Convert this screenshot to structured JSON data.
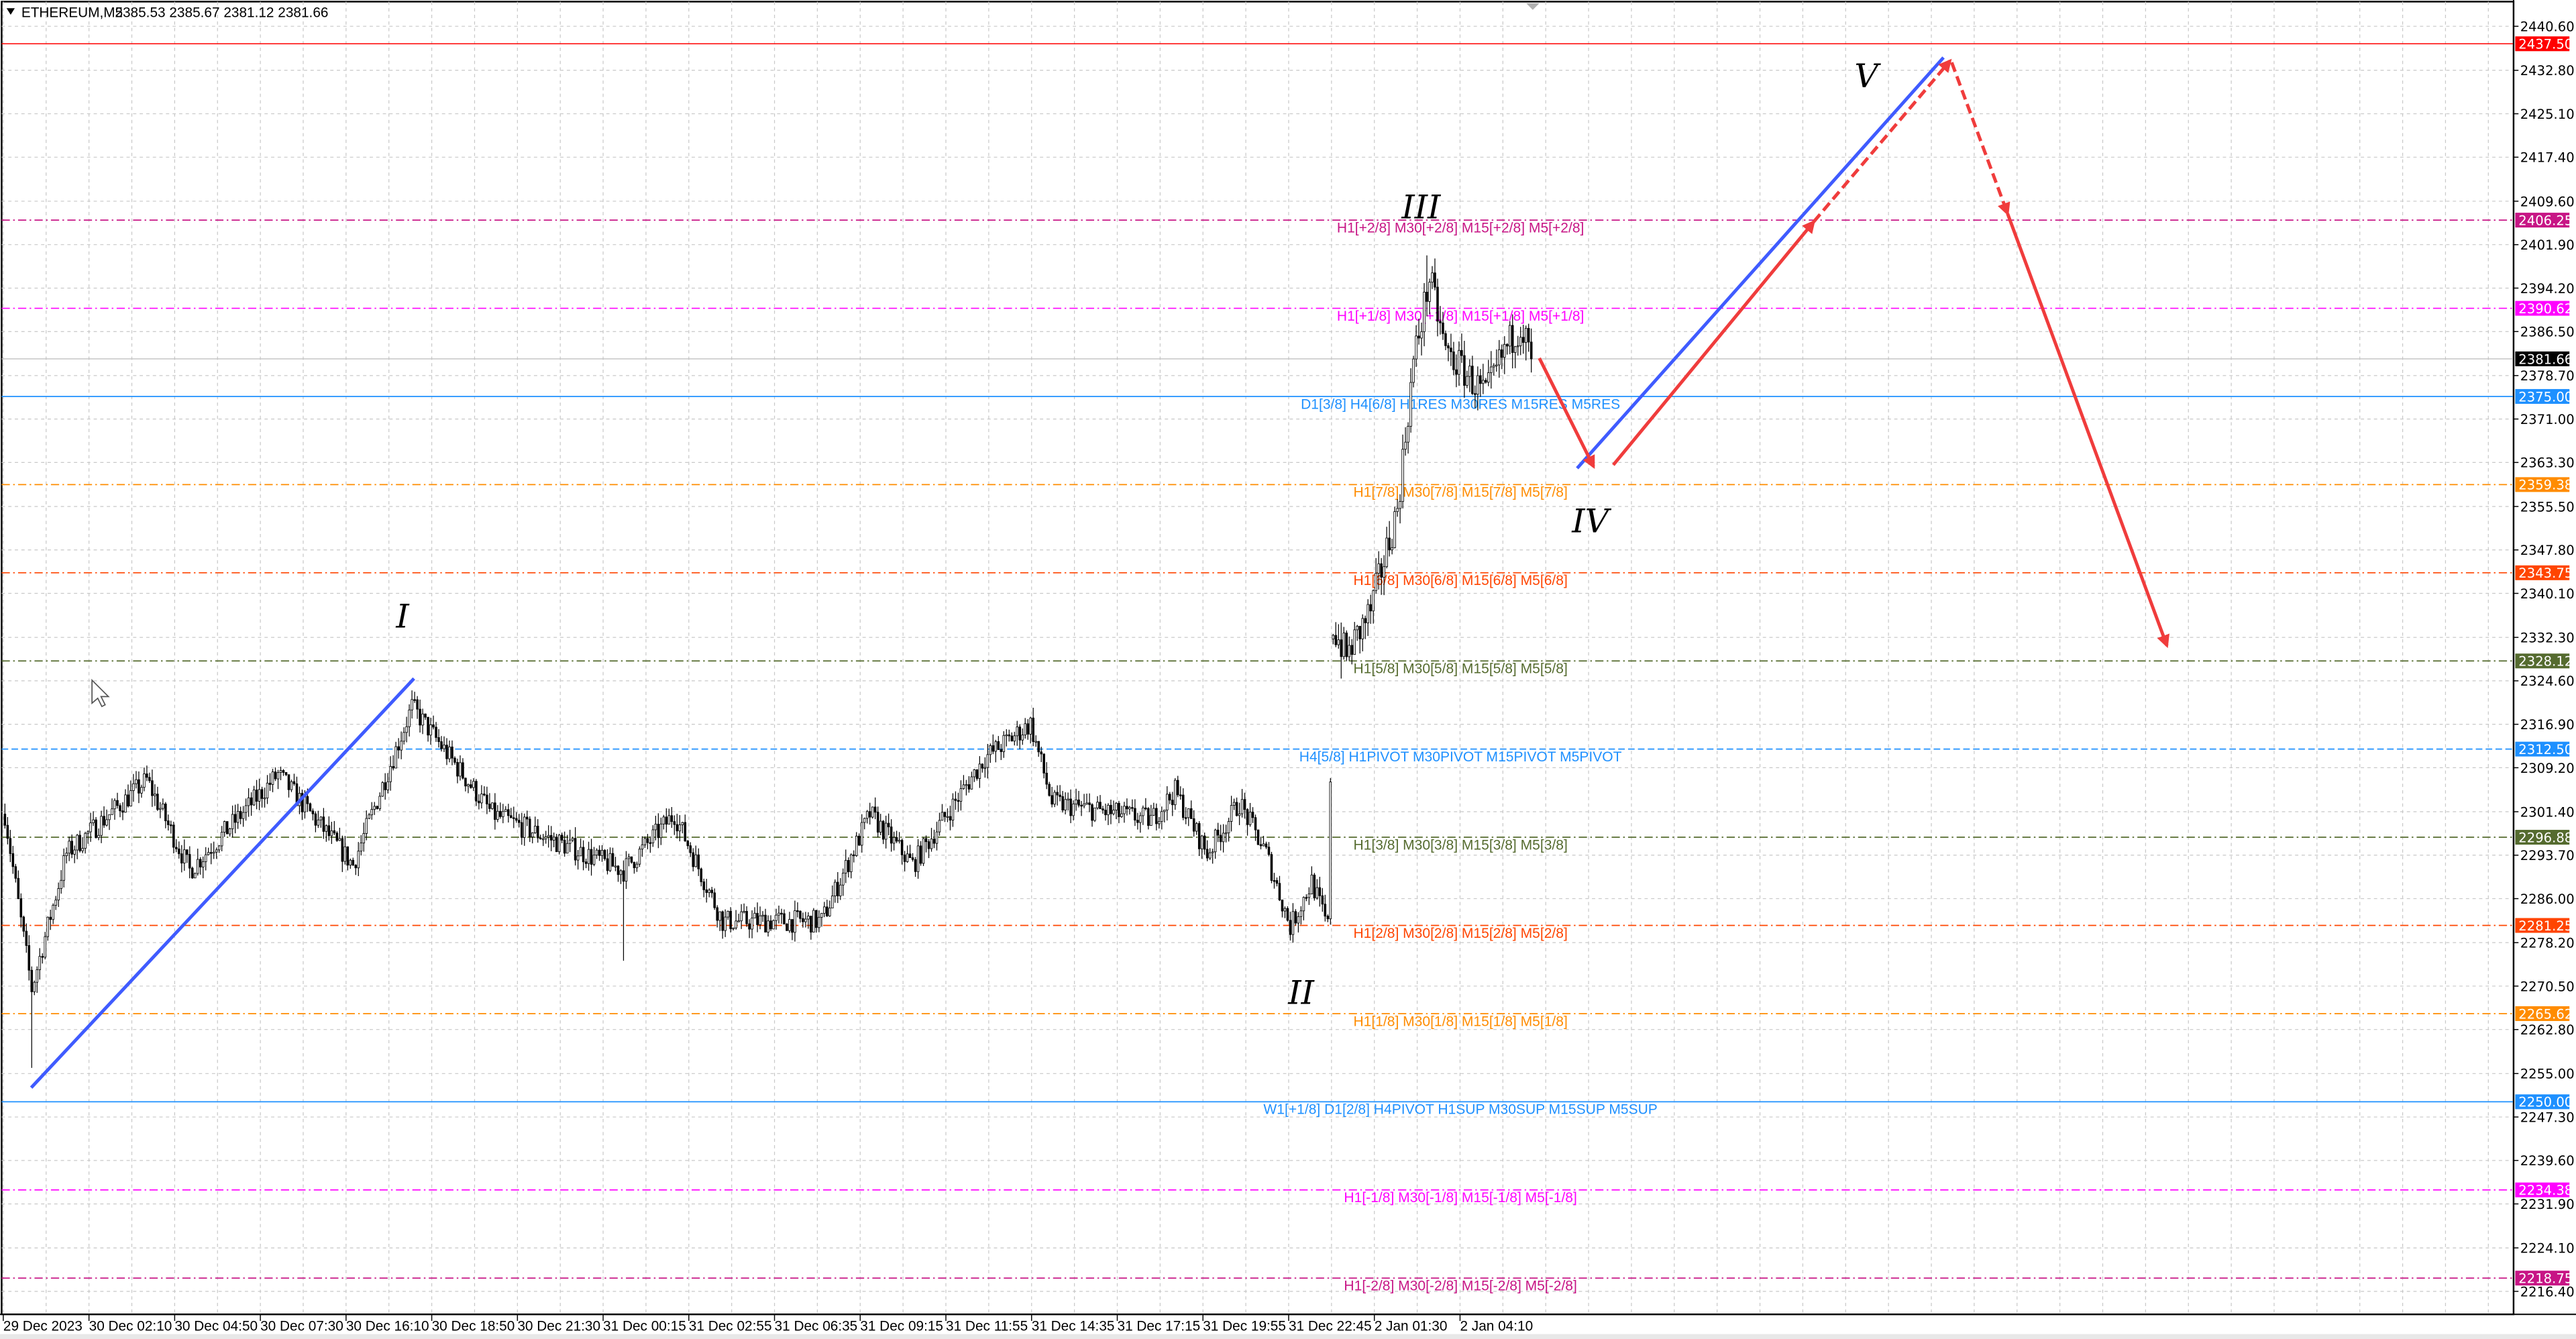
{
  "header": {
    "symbol": "ETHEREUM,M5",
    "ohlc": "2385.53 2385.67 2381.12 2381.66",
    "menu_icon": "triangle-down-icon"
  },
  "chart_data": {
    "type": "candlestick",
    "symbol": "ETHEREUM",
    "timeframe": "M5",
    "ylim": [
      2216.4,
      2440.6
    ],
    "grid": true,
    "price_ticks": [
      "2440.60",
      "2432.80",
      "2425.10",
      "2417.40",
      "2409.60",
      "2401.90",
      "2394.20",
      "2386.50",
      "2378.70",
      "2371.00",
      "2363.30",
      "2355.50",
      "2347.80",
      "2340.10",
      "2332.30",
      "2324.60",
      "2316.90",
      "2309.20",
      "2301.40",
      "2293.70",
      "2286.00",
      "2278.20",
      "2270.50",
      "2262.80",
      "2255.00",
      "2247.30",
      "2239.60",
      "2231.90",
      "2224.10",
      "2216.40"
    ],
    "time_ticks": [
      "29 Dec 2023",
      "30 Dec 02:10",
      "30 Dec 04:50",
      "30 Dec 07:30",
      "30 Dec 16:10",
      "30 Dec 18:50",
      "30 Dec 21:30",
      "31 Dec 00:15",
      "31 Dec 02:55",
      "31 Dec 06:35",
      "31 Dec 09:15",
      "31 Dec 11:55",
      "31 Dec 14:35",
      "31 Dec 17:15",
      "31 Dec 19:55",
      "31 Dec 22:45",
      "2 Jan 01:30",
      "2 Jan 04:10"
    ],
    "bars_per_time_tick": 32,
    "price_path": [
      {
        "bar": 0,
        "price": 2301
      },
      {
        "bar": 6,
        "price": 2282
      },
      {
        "bar": 10,
        "price": 2270
      },
      {
        "bar": 23,
        "price": 2294
      },
      {
        "bar": 53,
        "price": 2307
      },
      {
        "bar": 69,
        "price": 2291
      },
      {
        "bar": 102,
        "price": 2308
      },
      {
        "bar": 130,
        "price": 2292
      },
      {
        "bar": 152,
        "price": 2320
      },
      {
        "bar": 182,
        "price": 2301
      },
      {
        "bar": 231,
        "price": 2291
      },
      {
        "bar": 250,
        "price": 2301
      },
      {
        "bar": 268,
        "price": 2282
      },
      {
        "bar": 305,
        "price": 2282
      },
      {
        "bar": 323,
        "price": 2301
      },
      {
        "bar": 339,
        "price": 2292
      },
      {
        "bar": 366,
        "price": 2311
      },
      {
        "bar": 383,
        "price": 2317
      },
      {
        "bar": 391,
        "price": 2303
      },
      {
        "bar": 428,
        "price": 2300
      },
      {
        "bar": 437,
        "price": 2305
      },
      {
        "bar": 449,
        "price": 2294
      },
      {
        "bar": 461,
        "price": 2303
      },
      {
        "bar": 471,
        "price": 2294
      },
      {
        "bar": 480,
        "price": 2281
      },
      {
        "bar": 488,
        "price": 2289
      },
      {
        "bar": 494,
        "price": 2281
      },
      {
        "bar": 496,
        "price": 2334
      },
      {
        "bar": 501,
        "price": 2329
      },
      {
        "bar": 510,
        "price": 2337
      },
      {
        "bar": 520,
        "price": 2355
      },
      {
        "bar": 526,
        "price": 2381
      },
      {
        "bar": 532,
        "price": 2396
      },
      {
        "bar": 538,
        "price": 2383
      },
      {
        "bar": 544,
        "price": 2380
      },
      {
        "bar": 553,
        "price": 2375
      },
      {
        "bar": 560,
        "price": 2383
      },
      {
        "bar": 566,
        "price": 2388
      },
      {
        "bar": 570,
        "price": 2381.66
      }
    ],
    "wicks": [
      {
        "bar": 10,
        "low": 2256
      },
      {
        "bar": 231,
        "low": 2275
      },
      {
        "bar": 531,
        "high": 2400
      },
      {
        "bar": 499,
        "low": 2325
      }
    ],
    "last_price": {
      "value": "2381.66",
      "color": "#000000"
    },
    "target_price": {
      "value": "2437.50",
      "color": "#FF0000"
    },
    "levels": [
      {
        "price": 2406.25,
        "tag": "2406.25",
        "label": "H1[+2/8] M30[+2/8] M15[+2/8] M5[+2/8]",
        "color": "#C71585",
        "style": "dashdot"
      },
      {
        "price": 2390.62,
        "tag": "2390.62",
        "label": "H1[+1/8] M30[+1/8] M15[+1/8] M5[+1/8]",
        "color": "#FF00FF",
        "style": "dashdot"
      },
      {
        "price": 2375.0,
        "tag": "2375.00",
        "label": "D1[3/8] H4[6/8] H1RES M30RES M15RES M5RES",
        "color": "#1E90FF",
        "style": "solid"
      },
      {
        "price": 2359.38,
        "tag": "2359.38",
        "label": "H1[7/8] M30[7/8] M15[7/8] M5[7/8]",
        "color": "#FF8C00",
        "style": "dashdot"
      },
      {
        "price": 2343.75,
        "tag": "2343.75",
        "label": "H1[6/8] M30[6/8] M15[6/8] M5[6/8]",
        "color": "#FF4500",
        "style": "dashdot"
      },
      {
        "price": 2328.12,
        "tag": "2328.12",
        "label": "H1[5/8] M30[5/8] M15[5/8] M5[5/8]",
        "color": "#556B2F",
        "style": "dashdot"
      },
      {
        "price": 2312.5,
        "tag": "2312.50",
        "label": "H4[5/8] H1PIVOT M30PIVOT M15PIVOT M5PIVOT",
        "color": "#1E90FF",
        "style": "dashed"
      },
      {
        "price": 2296.88,
        "tag": "2296.88",
        "label": "H1[3/8] M30[3/8] M15[3/8] M5[3/8]",
        "color": "#556B2F",
        "style": "dashdot"
      },
      {
        "price": 2281.25,
        "tag": "2281.25",
        "label": "H1[2/8] M30[2/8] M15[2/8] M5[2/8]",
        "color": "#FF4500",
        "style": "dashdot"
      },
      {
        "price": 2265.62,
        "tag": "2265.62",
        "label": "H1[1/8] M30[1/8] M15[1/8] M5[1/8]",
        "color": "#FF8C00",
        "style": "dashdot"
      },
      {
        "price": 2250.0,
        "tag": "2250.00",
        "label": "W1[+1/8] D1[2/8] H4PIVOT H1SUP M30SUP M15SUP M5SUP",
        "color": "#1E90FF",
        "style": "solid"
      },
      {
        "price": 2234.38,
        "tag": "2234.38",
        "label": "H1[-1/8] M30[-1/8] M15[-1/8] M5[-1/8]",
        "color": "#FF00FF",
        "style": "dashdot"
      },
      {
        "price": 2218.75,
        "tag": "2218.75",
        "label": "H1[-2/8] M30[-2/8] M15[-2/8] M5[-2/8]",
        "color": "#C71585",
        "style": "dashdot"
      }
    ],
    "waves": [
      "I",
      "II",
      "III",
      "IV",
      "V"
    ],
    "colors": {
      "trend_line": "#3F5BFF",
      "projection": "#F03C3C",
      "bull_candle": "#FFFFFF",
      "bear_candle": "#000000"
    }
  }
}
